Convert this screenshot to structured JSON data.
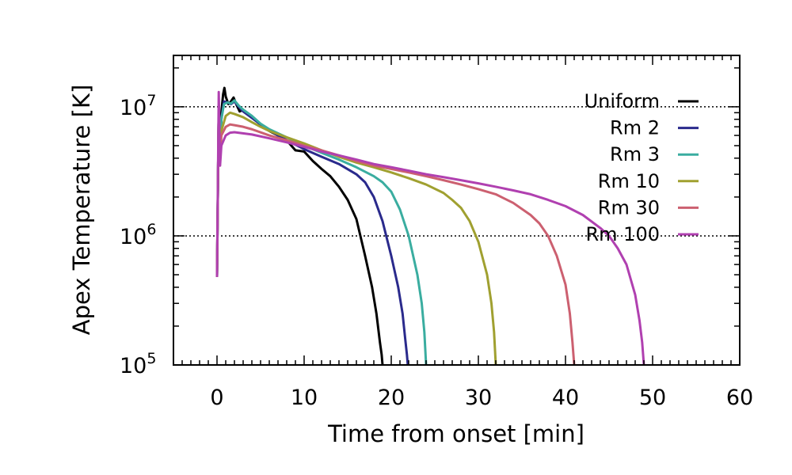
{
  "chart_data": {
    "type": "line",
    "title": "",
    "xlabel": "Time from onset [min]",
    "ylabel": "Apex Temperature [K]",
    "xlim": [
      -5,
      60
    ],
    "ylim": [
      100000,
      25000000
    ],
    "yscale": "log",
    "x_ticks": [
      {
        "value": 0,
        "label": "0"
      },
      {
        "value": 10,
        "label": "10"
      },
      {
        "value": 20,
        "label": "20"
      },
      {
        "value": 30,
        "label": "30"
      },
      {
        "value": 40,
        "label": "40"
      },
      {
        "value": 50,
        "label": "50"
      },
      {
        "value": 60,
        "label": "60"
      }
    ],
    "y_ticks": [
      {
        "value": 100000,
        "base": "10",
        "exp": "5"
      },
      {
        "value": 1000000,
        "base": "10",
        "exp": "6"
      },
      {
        "value": 10000000,
        "base": "10",
        "exp": "7"
      }
    ],
    "reference_lines": [
      1000000,
      10000000
    ],
    "series": [
      {
        "name": "Uniform",
        "color": "#000000",
        "points": [
          [
            0,
            480000
          ],
          [
            0.2,
            10000000
          ],
          [
            0.35,
            4500000
          ],
          [
            0.5,
            9000000
          ],
          [
            0.7,
            12500000
          ],
          [
            0.85,
            14000000
          ],
          [
            1.0,
            12000000
          ],
          [
            1.3,
            10500000
          ],
          [
            1.6,
            11000000
          ],
          [
            1.9,
            11800000
          ],
          [
            2.2,
            10500000
          ],
          [
            2.6,
            9200000
          ],
          [
            3.0,
            9500000
          ],
          [
            3.5,
            8800000
          ],
          [
            4.0,
            8300000
          ],
          [
            5,
            7300000
          ],
          [
            6,
            6500000
          ],
          [
            7,
            6000000
          ],
          [
            8,
            5500000
          ],
          [
            9,
            4600000
          ],
          [
            10,
            4500000
          ],
          [
            11,
            3800000
          ],
          [
            12,
            3300000
          ],
          [
            13,
            2900000
          ],
          [
            14,
            2400000
          ],
          [
            15,
            1900000
          ],
          [
            16,
            1350000
          ],
          [
            17,
            700000
          ],
          [
            17.8,
            400000
          ],
          [
            18.3,
            250000
          ],
          [
            18.7,
            150000
          ],
          [
            18.9,
            120000
          ],
          [
            19.0,
            100000
          ]
        ]
      },
      {
        "name": "Rm 2",
        "color": "#2a2a8c",
        "points": [
          [
            0,
            480000
          ],
          [
            0.2,
            10000000
          ],
          [
            0.35,
            4000000
          ],
          [
            0.5,
            8000000
          ],
          [
            0.8,
            11000000
          ],
          [
            1.2,
            10800000
          ],
          [
            1.6,
            10500000
          ],
          [
            2.0,
            11000000
          ],
          [
            2.5,
            10000000
          ],
          [
            3,
            9200000
          ],
          [
            4,
            8200000
          ],
          [
            5,
            7300000
          ],
          [
            6,
            6600000
          ],
          [
            7,
            6000000
          ],
          [
            8,
            5500000
          ],
          [
            10,
            4700000
          ],
          [
            12,
            4100000
          ],
          [
            14,
            3600000
          ],
          [
            16,
            3000000
          ],
          [
            17,
            2600000
          ],
          [
            18,
            2000000
          ],
          [
            19,
            1300000
          ],
          [
            20,
            700000
          ],
          [
            20.8,
            400000
          ],
          [
            21.3,
            250000
          ],
          [
            21.6,
            160000
          ],
          [
            21.8,
            120000
          ],
          [
            21.9,
            100000
          ]
        ]
      },
      {
        "name": "Rm 3",
        "color": "#3aada0",
        "points": [
          [
            0,
            480000
          ],
          [
            0.2,
            10000000
          ],
          [
            0.35,
            4000000
          ],
          [
            0.5,
            8000000
          ],
          [
            0.8,
            10500000
          ],
          [
            1.2,
            10800000
          ],
          [
            1.6,
            10600000
          ],
          [
            2.0,
            11200000
          ],
          [
            2.5,
            10200000
          ],
          [
            3,
            9500000
          ],
          [
            4,
            8500000
          ],
          [
            5,
            7400000
          ],
          [
            6,
            6700000
          ],
          [
            8,
            5800000
          ],
          [
            10,
            5000000
          ],
          [
            12,
            4400000
          ],
          [
            14,
            3900000
          ],
          [
            16,
            3400000
          ],
          [
            18,
            2900000
          ],
          [
            19,
            2600000
          ],
          [
            20,
            2200000
          ],
          [
            21,
            1600000
          ],
          [
            22,
            1000000
          ],
          [
            23,
            500000
          ],
          [
            23.5,
            300000
          ],
          [
            23.8,
            180000
          ],
          [
            24.0,
            100000
          ]
        ]
      },
      {
        "name": "Rm 10",
        "color": "#a0a030",
        "points": [
          [
            0,
            480000
          ],
          [
            0.2,
            10000000
          ],
          [
            0.35,
            4000000
          ],
          [
            0.5,
            6500000
          ],
          [
            1.0,
            8500000
          ],
          [
            1.5,
            9000000
          ],
          [
            2.0,
            8800000
          ],
          [
            3,
            8300000
          ],
          [
            4,
            7600000
          ],
          [
            5,
            7000000
          ],
          [
            6,
            6500000
          ],
          [
            8,
            5800000
          ],
          [
            10,
            5200000
          ],
          [
            12,
            4600000
          ],
          [
            14,
            4100000
          ],
          [
            16,
            3700000
          ],
          [
            18,
            3400000
          ],
          [
            20,
            3100000
          ],
          [
            22,
            2800000
          ],
          [
            24,
            2500000
          ],
          [
            26,
            2150000
          ],
          [
            27,
            1900000
          ],
          [
            28,
            1650000
          ],
          [
            29,
            1300000
          ],
          [
            30,
            900000
          ],
          [
            31,
            500000
          ],
          [
            31.5,
            300000
          ],
          [
            31.8,
            180000
          ],
          [
            32.0,
            100000
          ]
        ]
      },
      {
        "name": "Rm 30",
        "color": "#cc6070",
        "points": [
          [
            0,
            480000
          ],
          [
            0.2,
            10000000
          ],
          [
            0.35,
            4000000
          ],
          [
            0.5,
            6000000
          ],
          [
            1.0,
            7000000
          ],
          [
            1.5,
            7300000
          ],
          [
            2,
            7200000
          ],
          [
            3,
            7000000
          ],
          [
            4,
            6700000
          ],
          [
            6,
            6000000
          ],
          [
            8,
            5500000
          ],
          [
            10,
            5000000
          ],
          [
            12,
            4600000
          ],
          [
            14,
            4200000
          ],
          [
            16,
            3800000
          ],
          [
            18,
            3500000
          ],
          [
            20,
            3300000
          ],
          [
            22,
            3100000
          ],
          [
            24,
            2900000
          ],
          [
            26,
            2700000
          ],
          [
            28,
            2500000
          ],
          [
            30,
            2300000
          ],
          [
            32,
            2100000
          ],
          [
            34,
            1800000
          ],
          [
            36,
            1450000
          ],
          [
            37,
            1250000
          ],
          [
            38,
            1000000
          ],
          [
            39,
            700000
          ],
          [
            40,
            420000
          ],
          [
            40.5,
            250000
          ],
          [
            40.8,
            150000
          ],
          [
            41.0,
            100000
          ]
        ]
      },
      {
        "name": "Rm 100",
        "color": "#b040b0",
        "points": [
          [
            0,
            480000
          ],
          [
            0.2,
            13000000
          ],
          [
            0.35,
            3500000
          ],
          [
            0.5,
            5000000
          ],
          [
            1.0,
            6000000
          ],
          [
            1.5,
            6300000
          ],
          [
            2,
            6350000
          ],
          [
            4,
            6100000
          ],
          [
            6,
            5700000
          ],
          [
            8,
            5300000
          ],
          [
            10,
            4900000
          ],
          [
            12,
            4500000
          ],
          [
            14,
            4200000
          ],
          [
            16,
            3900000
          ],
          [
            18,
            3600000
          ],
          [
            20,
            3400000
          ],
          [
            22,
            3200000
          ],
          [
            24,
            3000000
          ],
          [
            26,
            2850000
          ],
          [
            28,
            2700000
          ],
          [
            30,
            2550000
          ],
          [
            32,
            2400000
          ],
          [
            34,
            2250000
          ],
          [
            36,
            2100000
          ],
          [
            38,
            1900000
          ],
          [
            40,
            1700000
          ],
          [
            42,
            1450000
          ],
          [
            44,
            1150000
          ],
          [
            45,
            1000000
          ],
          [
            46,
            800000
          ],
          [
            47,
            600000
          ],
          [
            48,
            350000
          ],
          [
            48.5,
            220000
          ],
          [
            48.8,
            150000
          ],
          [
            49.0,
            100000
          ]
        ]
      }
    ]
  }
}
